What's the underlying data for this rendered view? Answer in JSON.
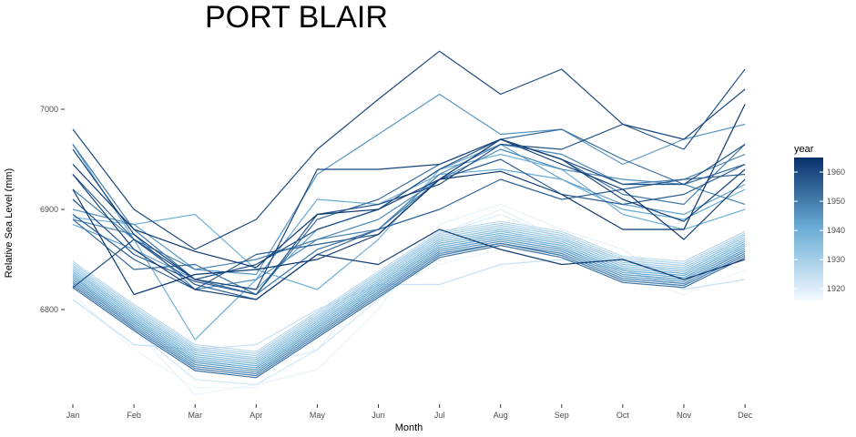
{
  "chart_data": {
    "type": "line",
    "title": "PORT BLAIR",
    "xlabel": "Month",
    "ylabel": "Relative Sea Level (mm)",
    "categories": [
      "Jan",
      "Feb",
      "Mar",
      "Apr",
      "May",
      "Jun",
      "Jul",
      "Aug",
      "Sep",
      "Oct",
      "Nov",
      "Dec"
    ],
    "y_ticks": [
      6800,
      6900,
      7000
    ],
    "ylim": [
      6710,
      7060
    ],
    "grid": false,
    "legend": {
      "title": "year",
      "ticks": [
        1920,
        1930,
        1940,
        1950,
        1960
      ],
      "range": [
        1916,
        1965
      ],
      "color_low": "#f4f9ff",
      "color_high": "#08306b",
      "placement": "right"
    },
    "series": [
      {
        "year": 1917,
        "values": [
          6815,
          6760,
          6722,
          6722,
          6790,
          6820,
          6845,
          6860,
          6855,
          6835,
          6815,
          6840
        ]
      },
      {
        "year": 1918,
        "values": [
          6850,
          6780,
          6715,
          6725,
          6740,
          6800,
          6885,
          6905,
          6880,
          6860,
          6820,
          6865
        ]
      },
      {
        "year": 1919,
        "values": [
          6830,
          6790,
          6748,
          6742,
          6760,
          6830,
          6875,
          6900,
          6870,
          6850,
          6830,
          6870
        ]
      },
      {
        "year": 1920,
        "values": [
          6840,
          6795,
          6760,
          6750,
          6790,
          6835,
          6875,
          6895,
          6870,
          6850,
          6835,
          6875
        ]
      },
      {
        "year": 1922,
        "values": [
          6835,
          6780,
          6730,
          6725,
          6760,
          6810,
          6855,
          6880,
          6860,
          6840,
          6825,
          6860
        ]
      },
      {
        "year": 1924,
        "values": [
          6810,
          6765,
          6760,
          6765,
          6800,
          6825,
          6825,
          6845,
          6850,
          6840,
          6820,
          6830
        ]
      },
      {
        "year": 1926,
        "values": [
          6848,
          6805,
          6765,
          6758,
          6798,
          6838,
          6878,
          6888,
          6878,
          6853,
          6848,
          6878
        ]
      },
      {
        "year": 1928,
        "values": [
          6846,
          6803,
          6763,
          6756,
          6796,
          6836,
          6876,
          6886,
          6876,
          6851,
          6846,
          6876
        ]
      },
      {
        "year": 1930,
        "values": [
          6844,
          6801,
          6761,
          6754,
          6794,
          6834,
          6874,
          6884,
          6874,
          6849,
          6844,
          6874
        ]
      },
      {
        "year": 1932,
        "values": [
          6842,
          6799,
          6759,
          6752,
          6792,
          6832,
          6872,
          6882,
          6872,
          6847,
          6842,
          6872
        ]
      },
      {
        "year": 1934,
        "values": [
          6840,
          6797,
          6757,
          6750,
          6790,
          6830,
          6870,
          6880,
          6870,
          6845,
          6840,
          6870
        ]
      },
      {
        "year": 1936,
        "values": [
          6838,
          6795,
          6755,
          6748,
          6788,
          6828,
          6868,
          6878,
          6868,
          6843,
          6838,
          6868
        ]
      },
      {
        "year": 1938,
        "values": [
          6836,
          6793,
          6753,
          6746,
          6786,
          6826,
          6866,
          6876,
          6866,
          6841,
          6836,
          6866
        ]
      },
      {
        "year": 1939,
        "values": [
          6892,
          6885,
          6895,
          6840,
          6820,
          6870,
          6940,
          6955,
          6940,
          6895,
          6880,
          6900
        ]
      },
      {
        "year": 1940,
        "values": [
          6834,
          6791,
          6751,
          6744,
          6784,
          6824,
          6864,
          6874,
          6864,
          6839,
          6834,
          6864
        ]
      },
      {
        "year": 1941,
        "values": [
          6965,
          6870,
          6770,
          6830,
          6910,
          6905,
          6935,
          6940,
          6930,
          6900,
          6890,
          6920
        ]
      },
      {
        "year": 1942,
        "values": [
          6832,
          6789,
          6749,
          6742,
          6782,
          6822,
          6862,
          6872,
          6862,
          6837,
          6832,
          6862
        ]
      },
      {
        "year": 1943,
        "values": [
          6885,
          6860,
          6830,
          6820,
          6880,
          6900,
          6940,
          6965,
          6930,
          6905,
          6895,
          6925
        ]
      },
      {
        "year": 1944,
        "values": [
          6830,
          6787,
          6747,
          6740,
          6780,
          6820,
          6860,
          6870,
          6860,
          6835,
          6830,
          6860
        ]
      },
      {
        "year": 1945,
        "values": [
          6900,
          6885,
          6840,
          6835,
          6935,
          6975,
          7015,
          6975,
          6980,
          6945,
          6970,
          6985
        ]
      },
      {
        "year": 1946,
        "values": [
          6828,
          6785,
          6745,
          6738,
          6778,
          6818,
          6858,
          6868,
          6858,
          6833,
          6828,
          6858
        ]
      },
      {
        "year": 1947,
        "values": [
          6890,
          6875,
          6820,
          6830,
          6870,
          6890,
          6930,
          6960,
          6940,
          6930,
          6925,
          6905
        ]
      },
      {
        "year": 1948,
        "values": [
          6826,
          6783,
          6743,
          6736,
          6776,
          6816,
          6856,
          6866,
          6856,
          6831,
          6826,
          6856
        ]
      },
      {
        "year": 1949,
        "values": [
          6920,
          6870,
          6840,
          6850,
          6870,
          6880,
          6935,
          6965,
          6955,
          6925,
          6930,
          6955
        ]
      },
      {
        "year": 1950,
        "values": [
          6824,
          6781,
          6741,
          6734,
          6774,
          6814,
          6854,
          6866,
          6854,
          6829,
          6824,
          6854
        ]
      },
      {
        "year": 1951,
        "values": [
          6965,
          6880,
          6830,
          6815,
          6860,
          6880,
          6930,
          6970,
          6950,
          6915,
          6905,
          6965
        ]
      },
      {
        "year": 1952,
        "values": [
          6822,
          6779,
          6739,
          6732,
          6772,
          6812,
          6852,
          6864,
          6852,
          6827,
          6822,
          6852
        ]
      },
      {
        "year": 1953,
        "values": [
          6890,
          6840,
          6845,
          6815,
          6890,
          6910,
          6945,
          6970,
          6980,
          6950,
          6925,
          6945
        ]
      },
      {
        "year": 1955,
        "values": [
          6935,
          6870,
          6825,
          6810,
          6855,
          6880,
          6900,
          6930,
          6910,
          6920,
          6930,
          6935
        ]
      },
      {
        "year": 1956,
        "values": [
          6895,
          6850,
          6820,
          6855,
          6865,
          6875,
          6930,
          6950,
          6915,
          6905,
          6915,
          6945
        ]
      },
      {
        "year": 1958,
        "values": [
          6910,
          6855,
          6828,
          6815,
          6895,
          6905,
          6925,
          6965,
          6960,
          6985,
          6960,
          7040
        ]
      },
      {
        "year": 1959,
        "values": [
          6822,
          6870,
          6830,
          6845,
          6880,
          6900,
          6940,
          6970,
          6950,
          6925,
          6925,
          6965
        ]
      },
      {
        "year": 1960,
        "values": [
          6980,
          6900,
          6860,
          6890,
          6960,
          7010,
          7058,
          7015,
          7040,
          6985,
          6970,
          7020
        ]
      },
      {
        "year": 1961,
        "values": [
          6960,
          6875,
          6830,
          6820,
          6940,
          6940,
          6945,
          6970,
          6950,
          6910,
          6888,
          6940
        ]
      },
      {
        "year": 1962,
        "values": [
          6935,
          6860,
          6820,
          6810,
          6855,
          6845,
          6880,
          6860,
          6845,
          6850,
          6830,
          6850
        ]
      },
      {
        "year": 1963,
        "values": [
          6920,
          6815,
          6835,
          6840,
          6850,
          6875,
          6930,
          6970,
          6945,
          6920,
          6870,
          6930
        ]
      },
      {
        "year": 1964,
        "values": [
          6945,
          6880,
          6858,
          6842,
          6895,
          6900,
          6930,
          6938,
          6915,
          6880,
          6880,
          7005
        ]
      }
    ]
  }
}
